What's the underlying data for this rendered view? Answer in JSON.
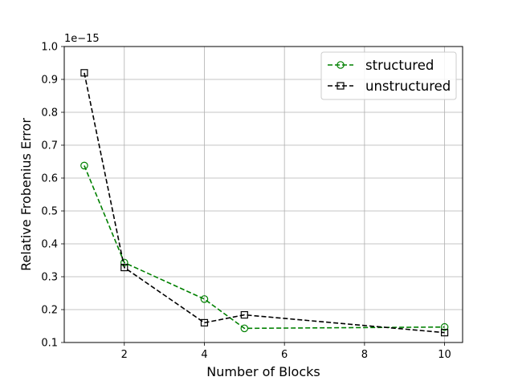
{
  "chart_data": {
    "type": "line",
    "xlabel": "Number of Blocks",
    "ylabel": "Relative Frobenius Error",
    "y_offset_label": "1e−15",
    "xlim": [
      0.5,
      10.45
    ],
    "ylim": [
      0.1,
      1.0
    ],
    "xticks": [
      2,
      4,
      6,
      8,
      10
    ],
    "xtick_labels": [
      "2",
      "4",
      "6",
      "8",
      "10"
    ],
    "yticks": [
      0.1,
      0.2,
      0.3,
      0.4,
      0.5,
      0.6,
      0.7,
      0.8,
      0.9,
      1.0
    ],
    "ytick_labels": [
      "0.1",
      "0.2",
      "0.3",
      "0.4",
      "0.5",
      "0.6",
      "0.7",
      "0.8",
      "0.9",
      "1.0"
    ],
    "grid": true,
    "legend_position": "top-right",
    "series": [
      {
        "name": "structured",
        "color": "#008000",
        "marker": "circle",
        "linestyle": "dashed",
        "x": [
          1,
          2,
          4,
          5,
          10
        ],
        "y": [
          0.638,
          0.343,
          0.232,
          0.143,
          0.147
        ]
      },
      {
        "name": "unstructured",
        "color": "#000000",
        "marker": "square",
        "linestyle": "dashed",
        "x": [
          1,
          2,
          4,
          5,
          10
        ],
        "y": [
          0.92,
          0.328,
          0.16,
          0.184,
          0.13
        ]
      }
    ]
  }
}
